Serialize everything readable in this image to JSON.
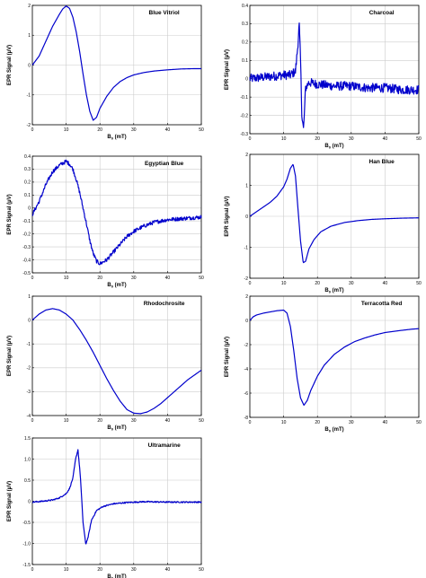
{
  "figure": {
    "ylabel": "EPR Signal (µV)",
    "xlabel_main": "B",
    "xlabel_sub": "0",
    "xlabel_unit": " (mT)"
  },
  "colors": {
    "line": "#0000cc",
    "grid": "#cccccc",
    "axis": "#000000",
    "text": "#000000"
  },
  "chart_data": [
    {
      "type": "line",
      "title": "Blue Vitriol",
      "xlim": [
        0,
        50
      ],
      "ylim": [
        -2,
        2
      ],
      "xticks": [
        0,
        10,
        20,
        30,
        40,
        50
      ],
      "yticks": [
        -2,
        -1,
        0,
        1,
        2
      ],
      "yticklabels": [
        "-2",
        "-1",
        "0",
        "1",
        "2"
      ],
      "grid": true,
      "x": [
        0,
        2,
        4,
        6,
        8,
        9,
        10,
        11,
        12,
        13,
        14,
        15,
        16,
        17,
        18,
        19,
        20,
        22,
        24,
        26,
        28,
        30,
        33,
        36,
        40,
        44,
        48,
        50
      ],
      "y": [
        0.0,
        0.3,
        0.8,
        1.3,
        1.7,
        1.88,
        1.98,
        1.9,
        1.6,
        1.1,
        0.45,
        -0.3,
        -1.0,
        -1.55,
        -1.85,
        -1.75,
        -1.45,
        -1.05,
        -0.75,
        -0.55,
        -0.42,
        -0.33,
        -0.25,
        -0.2,
        -0.16,
        -0.13,
        -0.12,
        -0.12
      ],
      "noise": 0.0
    },
    {
      "type": "line",
      "title": "Charcoal",
      "xlim": [
        0,
        50
      ],
      "ylim": [
        -0.3,
        0.4
      ],
      "xticks": [
        0,
        10,
        20,
        30,
        40,
        50
      ],
      "yticks": [
        -0.3,
        -0.2,
        -0.1,
        0,
        0.1,
        0.2,
        0.3,
        0.4
      ],
      "yticklabels": [
        "-0.3",
        "-0.2",
        "-0.1",
        "0",
        "0.1",
        "0.2",
        "0.3",
        "0.4"
      ],
      "grid": true,
      "x": [
        0,
        5,
        10,
        12,
        13.5,
        14.2,
        14.6,
        15.0,
        15.4,
        15.9,
        16.5,
        17.5,
        20,
        25,
        30,
        35,
        40,
        45,
        50
      ],
      "y": [
        0.0,
        0.01,
        0.02,
        0.02,
        0.04,
        0.18,
        0.3,
        0.1,
        -0.2,
        -0.28,
        -0.05,
        -0.02,
        -0.03,
        -0.04,
        -0.04,
        -0.05,
        -0.05,
        -0.06,
        -0.06
      ],
      "noise": 0.025
    },
    {
      "type": "line",
      "title": "Egyptian Blue",
      "xlim": [
        0,
        50
      ],
      "ylim": [
        -0.5,
        0.4
      ],
      "xticks": [
        0,
        10,
        20,
        30,
        40,
        50
      ],
      "yticks": [
        -0.5,
        -0.4,
        -0.3,
        -0.2,
        -0.1,
        0,
        0.1,
        0.2,
        0.3,
        0.4
      ],
      "yticklabels": [
        "-0.5",
        "-0.4",
        "-0.3",
        "-0.2",
        "-0.1",
        "0",
        "0.1",
        "0.2",
        "0.3",
        "0.4"
      ],
      "grid": true,
      "x": [
        0,
        2,
        4,
        6,
        8,
        10,
        11,
        12,
        13,
        14,
        15,
        16,
        17,
        18,
        19,
        20,
        22,
        24,
        26,
        28,
        30,
        33,
        36,
        40,
        45,
        50
      ],
      "y": [
        -0.05,
        0.05,
        0.18,
        0.28,
        0.33,
        0.36,
        0.34,
        0.3,
        0.22,
        0.12,
        0.0,
        -0.12,
        -0.25,
        -0.35,
        -0.41,
        -0.43,
        -0.4,
        -0.34,
        -0.28,
        -0.22,
        -0.18,
        -0.14,
        -0.11,
        -0.09,
        -0.08,
        -0.07
      ],
      "noise": 0.015
    },
    {
      "type": "line",
      "title": "Han Blue",
      "xlim": [
        0,
        50
      ],
      "ylim": [
        -2,
        2
      ],
      "xticks": [
        0,
        10,
        20,
        30,
        40,
        50
      ],
      "yticks": [
        -2,
        -1,
        0,
        1,
        2
      ],
      "yticklabels": [
        "-2",
        "-1",
        "0",
        "1",
        "2"
      ],
      "grid": true,
      "x": [
        0,
        2,
        4,
        6,
        8,
        10,
        11,
        12,
        12.8,
        13.5,
        14.2,
        15.0,
        15.8,
        16.5,
        17.5,
        19,
        21,
        24,
        28,
        32,
        36,
        40,
        45,
        50
      ],
      "y": [
        0.0,
        0.15,
        0.3,
        0.45,
        0.65,
        0.95,
        1.2,
        1.55,
        1.68,
        1.3,
        0.3,
        -0.8,
        -1.5,
        -1.45,
        -1.05,
        -0.75,
        -0.5,
        -0.32,
        -0.2,
        -0.14,
        -0.1,
        -0.08,
        -0.06,
        -0.05
      ],
      "noise": 0.0
    },
    {
      "type": "line",
      "title": "Rhodochrosite",
      "xlim": [
        0,
        50
      ],
      "ylim": [
        -4,
        1
      ],
      "xticks": [
        0,
        10,
        20,
        30,
        40,
        50
      ],
      "yticks": [
        -4,
        -3,
        -2,
        -1,
        0,
        1
      ],
      "yticklabels": [
        "-4",
        "-3",
        "-2",
        "-1",
        "0",
        "1"
      ],
      "grid": true,
      "x": [
        0,
        2,
        4,
        6,
        8,
        10,
        12,
        14,
        16,
        18,
        20,
        22,
        24,
        26,
        28,
        30,
        32,
        34,
        36,
        38,
        40,
        42,
        44,
        46,
        48,
        50
      ],
      "y": [
        0.0,
        0.25,
        0.42,
        0.48,
        0.42,
        0.25,
        0.0,
        -0.4,
        -0.85,
        -1.35,
        -1.9,
        -2.45,
        -2.95,
        -3.4,
        -3.75,
        -3.9,
        -3.92,
        -3.85,
        -3.7,
        -3.5,
        -3.25,
        -3.0,
        -2.75,
        -2.5,
        -2.3,
        -2.1
      ],
      "noise": 0.0
    },
    {
      "type": "line",
      "title": "Terracotta Red",
      "xlim": [
        0,
        50
      ],
      "ylim": [
        -8,
        2
      ],
      "xticks": [
        0,
        10,
        20,
        30,
        40,
        50
      ],
      "yticks": [
        -8,
        -6,
        -4,
        -2,
        0,
        2
      ],
      "yticklabels": [
        "-8",
        "-6",
        "-4",
        "-2",
        "0",
        "2"
      ],
      "grid": true,
      "x": [
        0,
        1,
        2,
        4,
        6,
        8,
        10,
        11,
        12,
        13,
        14,
        15,
        16,
        17,
        18,
        20,
        22,
        25,
        28,
        31,
        34,
        37,
        40,
        44,
        48,
        50
      ],
      "y": [
        0.0,
        0.3,
        0.45,
        0.6,
        0.7,
        0.8,
        0.85,
        0.6,
        -0.5,
        -2.5,
        -4.8,
        -6.4,
        -7.0,
        -6.6,
        -5.8,
        -4.6,
        -3.7,
        -2.8,
        -2.2,
        -1.75,
        -1.45,
        -1.2,
        -1.0,
        -0.85,
        -0.72,
        -0.68
      ],
      "noise": 0.0
    },
    {
      "type": "line",
      "title": "Ultramarine",
      "xlim": [
        0,
        50
      ],
      "ylim": [
        -1.5,
        1.5
      ],
      "xticks": [
        0,
        10,
        20,
        30,
        40,
        50
      ],
      "yticks": [
        -1.5,
        -1.0,
        -0.5,
        0,
        0.5,
        1.0,
        1.5
      ],
      "yticklabels": [
        "-1.5",
        "-1.0",
        "-0.5",
        "0",
        "0.5",
        "1.0",
        "1.5"
      ],
      "grid": true,
      "x": [
        0,
        3,
        6,
        8,
        10,
        11,
        12,
        12.8,
        13.5,
        14.2,
        15.0,
        15.8,
        16.5,
        17.5,
        19,
        21,
        24,
        28,
        33,
        40,
        45,
        50
      ],
      "y": [
        -0.02,
        0.0,
        0.03,
        0.08,
        0.18,
        0.3,
        0.55,
        1.0,
        1.22,
        0.6,
        -0.5,
        -1.02,
        -0.85,
        -0.45,
        -0.22,
        -0.12,
        -0.06,
        -0.03,
        -0.01,
        -0.02,
        -0.02,
        -0.02
      ],
      "noise": 0.015
    }
  ]
}
